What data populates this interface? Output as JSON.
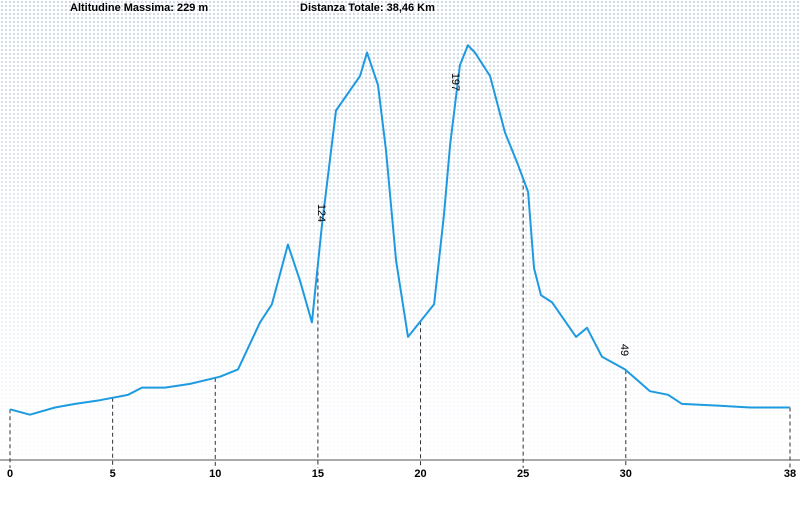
{
  "chart_data": {
    "type": "line",
    "header_max": "Altitudine Massima: 229 m",
    "header_distance": "Distanza Totale: 38,46 Km",
    "x": [
      0,
      0.97,
      2.19,
      3.17,
      4.38,
      5.75,
      6.43,
      7.55,
      8.77,
      10.23,
      11.11,
      12.18,
      12.76,
      13.54,
      14.13,
      14.71,
      15.2,
      15.88,
      17.05,
      17.39,
      17.93,
      18.32,
      18.81,
      19.39,
      20.66,
      21.14,
      21.44,
      21.92,
      22.31,
      22.65,
      23.39,
      24.11,
      24.75,
      25.24,
      25.53,
      25.87,
      26.41,
      27.58,
      28.11,
      28.84,
      29.96,
      31.18,
      32.06,
      32.74,
      34.59,
      36.05,
      36.54,
      38
    ],
    "series": [
      {
        "name": "Altitudine",
        "color": "#1e9be0",
        "values": [
          28,
          25,
          29,
          31,
          33,
          36,
          40,
          40,
          42,
          46,
          50,
          76,
          86,
          119,
          99,
          76,
          130,
          193,
          212,
          225,
          207,
          171,
          110,
          68,
          86,
          135,
          174,
          218,
          229,
          225,
          212,
          181,
          163,
          148,
          106,
          91,
          87,
          68,
          73,
          57,
          50,
          38,
          36,
          31,
          30,
          29,
          29,
          29
        ]
      }
    ],
    "annotations": [
      "124",
      "197",
      "49"
    ],
    "xlim": [
      0,
      38
    ],
    "xticks": [
      0,
      5,
      10,
      15,
      20,
      25,
      30,
      38
    ],
    "ylim": [
      0,
      254
    ]
  }
}
